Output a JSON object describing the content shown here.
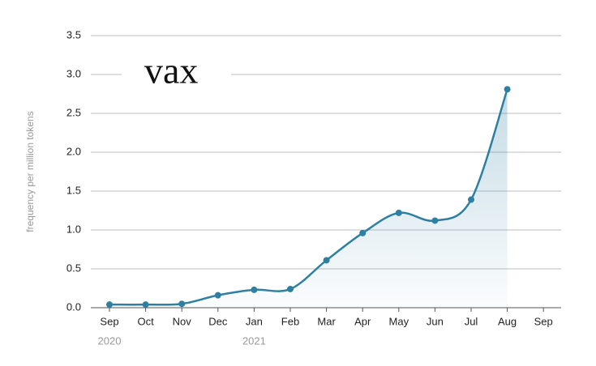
{
  "chart_data": {
    "type": "line",
    "title": "vax",
    "y_label": "frequency per million tokens",
    "categories": [
      "Sep",
      "Oct",
      "Nov",
      "Dec",
      "Jan",
      "Feb",
      "Mar",
      "Apr",
      "May",
      "Jun",
      "Jul",
      "Aug",
      "Sep"
    ],
    "x_sublabels": [
      "2020",
      null,
      null,
      null,
      "2021",
      null,
      null,
      null,
      null,
      null,
      null,
      null,
      null
    ],
    "series": [
      {
        "name": "vax",
        "color": "#2f7fa3",
        "values": [
          0.04,
          0.04,
          0.05,
          0.16,
          0.23,
          0.24,
          0.61,
          0.96,
          1.22,
          1.12,
          1.39,
          2.81,
          null
        ]
      }
    ],
    "ylim": [
      0,
      3.5
    ],
    "yticks": [
      {
        "value": 0,
        "label": "0.0"
      },
      0.5,
      {
        "value": 1,
        "label": "1.0"
      },
      1.5,
      {
        "value": 2,
        "label": "2.0"
      },
      2.5,
      {
        "value": 3,
        "label": "3.0"
      },
      3.5
    ],
    "grid": true,
    "area": true
  }
}
